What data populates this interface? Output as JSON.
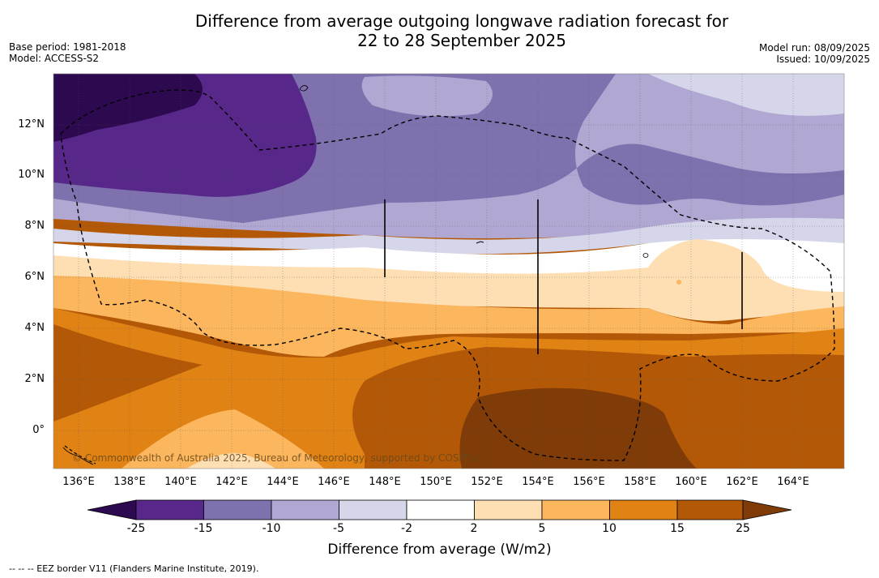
{
  "title_line1": "Difference from average outgoing longwave radiation forecast for",
  "title_line2": "22 to 28 September 2025",
  "meta": {
    "base_period": "Base period: 1981-2018",
    "model": "Model: ACCESS-S2",
    "model_run": "Model run: 08/09/2025",
    "issued": "Issued: 10/09/2025"
  },
  "axes": {
    "lat_labels": [
      "12°N",
      "10°N",
      "8°N",
      "6°N",
      "4°N",
      "2°N",
      "0°"
    ],
    "lon_labels": [
      "136°E",
      "138°E",
      "140°E",
      "142°E",
      "144°E",
      "146°E",
      "148°E",
      "150°E",
      "152°E",
      "154°E",
      "156°E",
      "158°E",
      "160°E",
      "162°E",
      "164°E"
    ]
  },
  "colorbar": {
    "ticks": [
      "-25",
      "-15",
      "-10",
      "-5",
      "-2",
      "2",
      "5",
      "10",
      "15",
      "25"
    ],
    "colors": [
      "#2d0a50",
      "#57278a",
      "#7e71ad",
      "#b0a8d2",
      "#d6d6ea",
      "#ffffff",
      "#fddfb3",
      "#fbb65e",
      "#e08214",
      "#b35806",
      "#7f3b08"
    ],
    "title": "Difference from average (W/m2)"
  },
  "copyright": "© Commonwealth of Australia 2025, Bureau of Meteorology, supported by COSPPac",
  "footnote": "--  --  -- EEZ border V11 (Flanders Marine Institute, 2019)."
}
